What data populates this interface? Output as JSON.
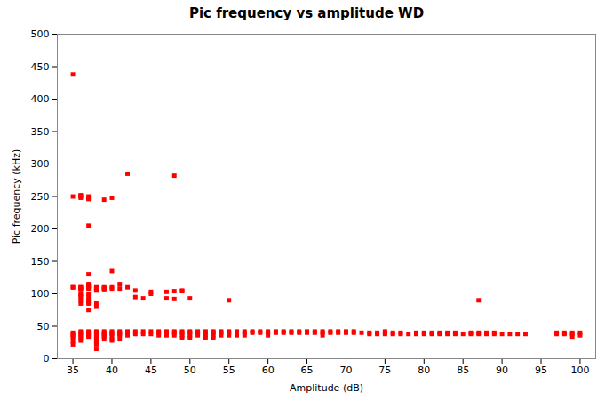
{
  "chart_data": {
    "type": "scatter",
    "title": "Pic frequency vs amplitude WD",
    "xlabel": "Amplitude (dB)",
    "ylabel": "Pic frequency (kHz)",
    "xlim": [
      33,
      102
    ],
    "ylim": [
      0,
      500
    ],
    "xticks": [
      35,
      40,
      45,
      50,
      55,
      60,
      65,
      70,
      75,
      80,
      85,
      90,
      95,
      100
    ],
    "yticks": [
      0,
      50,
      100,
      150,
      200,
      250,
      300,
      350,
      400,
      450,
      500
    ],
    "color": "#ff0000",
    "marker": "square",
    "grid": false,
    "x": [
      35,
      35,
      35,
      35,
      35,
      35,
      35,
      35,
      35,
      35,
      36,
      36,
      36,
      36,
      36,
      36,
      36,
      36,
      36,
      36,
      36,
      36,
      36,
      36,
      36,
      36,
      36,
      36,
      36,
      36,
      37,
      37,
      37,
      37,
      37,
      37,
      37,
      37,
      37,
      37,
      37,
      37,
      37,
      37,
      37,
      37,
      37,
      37,
      37,
      37,
      37,
      37,
      38,
      38,
      38,
      38,
      38,
      38,
      38,
      38,
      38,
      38,
      38,
      38,
      38,
      38,
      38,
      38,
      38,
      39,
      39,
      39,
      39,
      39,
      39,
      39,
      39,
      39,
      39,
      39,
      40,
      40,
      40,
      40,
      40,
      40,
      40,
      40,
      40,
      40,
      41,
      41,
      41,
      41,
      41,
      41,
      41,
      42,
      42,
      42,
      42,
      42,
      43,
      43,
      43,
      43,
      44,
      44,
      44,
      45,
      45,
      45,
      45,
      46,
      46,
      46,
      47,
      47,
      47,
      47,
      47,
      48,
      48,
      48,
      48,
      48,
      48,
      49,
      49,
      49,
      49,
      49,
      49,
      50,
      50,
      50,
      50,
      50,
      51,
      51,
      51,
      52,
      52,
      52,
      52,
      53,
      53,
      53,
      53,
      54,
      54,
      54,
      55,
      55,
      55,
      55,
      56,
      56,
      56,
      57,
      57,
      57,
      58,
      58,
      59,
      59,
      60,
      60,
      60,
      61,
      61,
      62,
      62,
      63,
      63,
      64,
      64,
      65,
      65,
      66,
      66,
      67,
      67,
      67,
      68,
      68,
      69,
      69,
      70,
      70,
      71,
      71,
      72,
      73,
      73,
      74,
      74,
      75,
      75,
      75,
      76,
      76,
      77,
      77,
      78,
      79,
      79,
      80,
      80,
      81,
      81,
      82,
      82,
      83,
      83,
      84,
      84,
      85,
      86,
      86,
      87,
      87,
      87,
      88,
      88,
      89,
      89,
      90,
      91,
      92,
      93,
      97,
      97,
      98,
      98,
      99,
      99,
      99,
      100,
      100
    ],
    "y": [
      438,
      250,
      110,
      110,
      40,
      38,
      35,
      32,
      27,
      22,
      252,
      251,
      250,
      248,
      110,
      110,
      109,
      108,
      107,
      100,
      98,
      95,
      90,
      85,
      42,
      40,
      38,
      35,
      32,
      28,
      250,
      248,
      246,
      115,
      113,
      112,
      111,
      110,
      108,
      100,
      95,
      90,
      88,
      85,
      75,
      42,
      40,
      38,
      36,
      34,
      205,
      130,
      110,
      109,
      108,
      107,
      105,
      85,
      80,
      42,
      40,
      38,
      36,
      34,
      30,
      28,
      25,
      22,
      15,
      245,
      110,
      109,
      108,
      107,
      42,
      40,
      38,
      36,
      34,
      30,
      248,
      135,
      110,
      108,
      42,
      40,
      38,
      35,
      30,
      28,
      115,
      108,
      42,
      40,
      38,
      36,
      30,
      285,
      110,
      42,
      40,
      36,
      105,
      95,
      42,
      38,
      93,
      42,
      38,
      103,
      100,
      42,
      38,
      42,
      40,
      36,
      103,
      93,
      42,
      40,
      36,
      282,
      104,
      92,
      42,
      40,
      36,
      105,
      104,
      42,
      40,
      36,
      32,
      93,
      42,
      40,
      36,
      32,
      42,
      40,
      36,
      42,
      40,
      36,
      32,
      42,
      40,
      36,
      32,
      42,
      40,
      36,
      90,
      42,
      40,
      36,
      42,
      40,
      36,
      42,
      40,
      36,
      42,
      40,
      42,
      40,
      42,
      40,
      36,
      42,
      40,
      42,
      40,
      42,
      40,
      42,
      40,
      42,
      40,
      42,
      40,
      42,
      40,
      36,
      42,
      40,
      42,
      40,
      42,
      40,
      42,
      40,
      40,
      40,
      38,
      40,
      38,
      42,
      40,
      38,
      40,
      38,
      40,
      38,
      38,
      40,
      38,
      40,
      38,
      40,
      38,
      40,
      38,
      40,
      38,
      40,
      38,
      38,
      40,
      38,
      90,
      40,
      38,
      40,
      38,
      40,
      38,
      38,
      38,
      38,
      38,
      40,
      38,
      40,
      38,
      40,
      38,
      34,
      40,
      36
    ]
  }
}
